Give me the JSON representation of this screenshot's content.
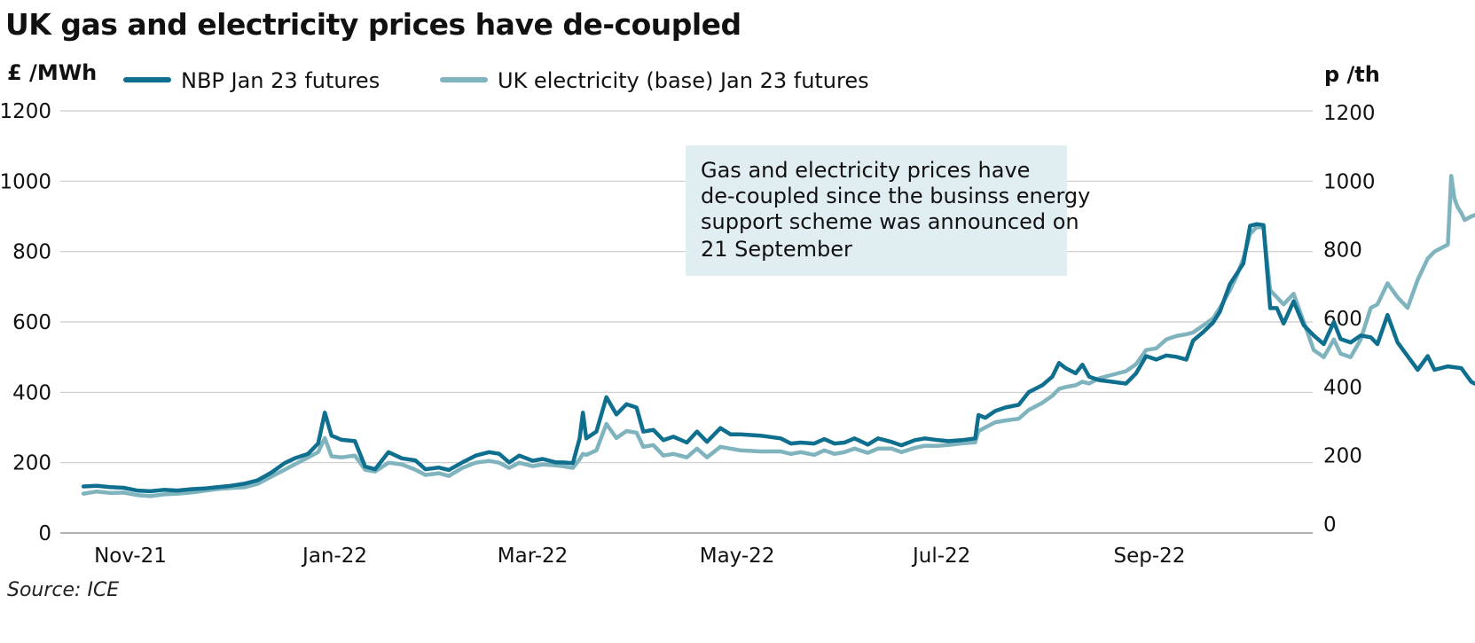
{
  "chart_data": {
    "type": "line",
    "title": "UK gas and electricity prices have de-coupled",
    "left_axis": {
      "unit": "£ /MWh",
      "ylim": [
        0,
        1200
      ],
      "ticks": [
        0,
        200,
        400,
        600,
        800,
        1000,
        1200
      ]
    },
    "right_axis": {
      "unit": "p /th",
      "ylim": [
        0,
        1200
      ],
      "ticks": [
        0,
        200,
        400,
        600,
        800,
        1000,
        1200
      ]
    },
    "x_ticks": [
      "Nov-21",
      "Jan-22",
      "Mar-22",
      "May-22",
      "Jul-22",
      "Sep-22"
    ],
    "x_tick_dates": [
      "2021-11-01",
      "2022-01-01",
      "2022-03-01",
      "2022-05-01",
      "2022-07-01",
      "2022-09-01"
    ],
    "grid": true,
    "legend_position": "top",
    "annotation": {
      "lines": [
        "Gas and electricity prices have",
        "de-coupled since the businss energy",
        "support scheme was announced on",
        "21 September"
      ]
    },
    "source": "Source: ICE",
    "series": [
      {
        "name": "NBP Jan 23 futures",
        "color": "#0f6f8f",
        "axis": "right",
        "points": [
          [
            "2021-10-18",
            110
          ],
          [
            "2021-10-22",
            112
          ],
          [
            "2021-10-26",
            108
          ],
          [
            "2021-10-30",
            106
          ],
          [
            "2021-11-03",
            98
          ],
          [
            "2021-11-07",
            96
          ],
          [
            "2021-11-11",
            100
          ],
          [
            "2021-11-15",
            98
          ],
          [
            "2021-11-19",
            102
          ],
          [
            "2021-11-23",
            104
          ],
          [
            "2021-11-27",
            108
          ],
          [
            "2021-12-01",
            112
          ],
          [
            "2021-12-05",
            118
          ],
          [
            "2021-12-09",
            128
          ],
          [
            "2021-12-13",
            150
          ],
          [
            "2021-12-17",
            178
          ],
          [
            "2021-12-20",
            192
          ],
          [
            "2021-12-24",
            205
          ],
          [
            "2021-12-27",
            235
          ],
          [
            "2021-12-29",
            325
          ],
          [
            "2021-12-31",
            258
          ],
          [
            "2022-01-03",
            246
          ],
          [
            "2022-01-07",
            242
          ],
          [
            "2022-01-10",
            168
          ],
          [
            "2022-01-13",
            160
          ],
          [
            "2022-01-17",
            210
          ],
          [
            "2022-01-21",
            192
          ],
          [
            "2022-01-25",
            186
          ],
          [
            "2022-01-28",
            160
          ],
          [
            "2022-02-01",
            165
          ],
          [
            "2022-02-04",
            158
          ],
          [
            "2022-02-08",
            180
          ],
          [
            "2022-02-12",
            200
          ],
          [
            "2022-02-16",
            210
          ],
          [
            "2022-02-19",
            205
          ],
          [
            "2022-02-22",
            180
          ],
          [
            "2022-02-25",
            200
          ],
          [
            "2022-03-01",
            185
          ],
          [
            "2022-03-04",
            190
          ],
          [
            "2022-03-08",
            180
          ],
          [
            "2022-03-10",
            180
          ],
          [
            "2022-03-13",
            178
          ],
          [
            "2022-03-15",
            250
          ],
          [
            "2022-03-16",
            325
          ],
          [
            "2022-03-17",
            250
          ],
          [
            "2022-03-20",
            270
          ],
          [
            "2022-03-23",
            370
          ],
          [
            "2022-03-26",
            320
          ],
          [
            "2022-03-29",
            350
          ],
          [
            "2022-04-01",
            340
          ],
          [
            "2022-04-03",
            270
          ],
          [
            "2022-04-06",
            275
          ],
          [
            "2022-04-09",
            245
          ],
          [
            "2022-04-12",
            255
          ],
          [
            "2022-04-16",
            238
          ],
          [
            "2022-04-19",
            270
          ],
          [
            "2022-04-22",
            240
          ],
          [
            "2022-04-26",
            280
          ],
          [
            "2022-04-29",
            262
          ],
          [
            "2022-05-02",
            262
          ],
          [
            "2022-05-08",
            258
          ],
          [
            "2022-05-14",
            250
          ],
          [
            "2022-05-17",
            235
          ],
          [
            "2022-05-20",
            238
          ],
          [
            "2022-05-24",
            235
          ],
          [
            "2022-05-27",
            248
          ],
          [
            "2022-05-30",
            235
          ],
          [
            "2022-06-02",
            238
          ],
          [
            "2022-06-05",
            250
          ],
          [
            "2022-06-09",
            232
          ],
          [
            "2022-06-12",
            250
          ],
          [
            "2022-06-16",
            240
          ],
          [
            "2022-06-19",
            230
          ],
          [
            "2022-06-23",
            245
          ],
          [
            "2022-06-26",
            250
          ],
          [
            "2022-06-30",
            245
          ],
          [
            "2022-07-03",
            242
          ],
          [
            "2022-07-07",
            245
          ],
          [
            "2022-07-11",
            250
          ],
          [
            "2022-07-12",
            318
          ],
          [
            "2022-07-14",
            310
          ],
          [
            "2022-07-17",
            330
          ],
          [
            "2022-07-20",
            340
          ],
          [
            "2022-07-24",
            348
          ],
          [
            "2022-07-27",
            385
          ],
          [
            "2022-07-31",
            405
          ],
          [
            "2022-08-03",
            430
          ],
          [
            "2022-08-05",
            470
          ],
          [
            "2022-08-07",
            455
          ],
          [
            "2022-08-10",
            440
          ],
          [
            "2022-08-12",
            465
          ],
          [
            "2022-08-14",
            430
          ],
          [
            "2022-08-17",
            420
          ],
          [
            "2022-08-21",
            415
          ],
          [
            "2022-08-25",
            410
          ],
          [
            "2022-08-28",
            440
          ],
          [
            "2022-08-31",
            490
          ],
          [
            "2022-09-03",
            480
          ],
          [
            "2022-09-06",
            492
          ],
          [
            "2022-09-09",
            488
          ],
          [
            "2022-09-12",
            480
          ],
          [
            "2022-09-14",
            535
          ],
          [
            "2022-09-17",
            560
          ],
          [
            "2022-09-20",
            588
          ],
          [
            "2022-09-22",
            620
          ],
          [
            "2022-09-25",
            700
          ],
          [
            "2022-09-27",
            730
          ],
          [
            "2022-09-29",
            760
          ],
          [
            "2022-10-01",
            870
          ],
          [
            "2022-10-03",
            875
          ],
          [
            "2022-10-05",
            872
          ],
          [
            "2022-10-07",
            630
          ],
          [
            "2022-10-09",
            630
          ],
          [
            "2022-10-11",
            585
          ],
          [
            "2022-10-14",
            650
          ],
          [
            "2022-10-17",
            580
          ],
          [
            "2022-10-20",
            550
          ],
          [
            "2022-10-23",
            525
          ],
          [
            "2022-10-26",
            590
          ],
          [
            "2022-10-28",
            540
          ],
          [
            "2022-10-31",
            530
          ],
          [
            "2022-11-03",
            550
          ],
          [
            "2022-11-06",
            545
          ],
          [
            "2022-11-08",
            525
          ],
          [
            "2022-11-11",
            610
          ],
          [
            "2022-11-14",
            530
          ],
          [
            "2022-11-17",
            490
          ],
          [
            "2022-11-20",
            450
          ],
          [
            "2022-11-23",
            490
          ],
          [
            "2022-11-25",
            450
          ],
          [
            "2022-11-29",
            460
          ],
          [
            "2022-12-03",
            455
          ],
          [
            "2022-12-06",
            415
          ],
          [
            "2022-12-09",
            400
          ]
        ]
      },
      {
        "name": "UK electricity (base) Jan 23 futures",
        "color": "#7fb4bf",
        "axis": "left",
        "points": [
          [
            "2021-10-18",
            112
          ],
          [
            "2021-10-22",
            118
          ],
          [
            "2021-10-26",
            114
          ],
          [
            "2021-10-30",
            115
          ],
          [
            "2021-11-03",
            108
          ],
          [
            "2021-11-07",
            105
          ],
          [
            "2021-11-11",
            110
          ],
          [
            "2021-11-15",
            112
          ],
          [
            "2021-11-19",
            115
          ],
          [
            "2021-11-23",
            120
          ],
          [
            "2021-11-27",
            125
          ],
          [
            "2021-12-01",
            128
          ],
          [
            "2021-12-05",
            130
          ],
          [
            "2021-12-09",
            140
          ],
          [
            "2021-12-13",
            160
          ],
          [
            "2021-12-17",
            180
          ],
          [
            "2021-12-20",
            195
          ],
          [
            "2021-12-24",
            215
          ],
          [
            "2021-12-27",
            230
          ],
          [
            "2021-12-29",
            270
          ],
          [
            "2021-12-31",
            218
          ],
          [
            "2022-01-03",
            215
          ],
          [
            "2022-01-07",
            220
          ],
          [
            "2022-01-10",
            180
          ],
          [
            "2022-01-13",
            175
          ],
          [
            "2022-01-17",
            200
          ],
          [
            "2022-01-21",
            195
          ],
          [
            "2022-01-25",
            180
          ],
          [
            "2022-01-28",
            165
          ],
          [
            "2022-02-01",
            170
          ],
          [
            "2022-02-04",
            162
          ],
          [
            "2022-02-08",
            185
          ],
          [
            "2022-02-12",
            200
          ],
          [
            "2022-02-16",
            205
          ],
          [
            "2022-02-19",
            200
          ],
          [
            "2022-02-22",
            185
          ],
          [
            "2022-02-25",
            200
          ],
          [
            "2022-03-01",
            190
          ],
          [
            "2022-03-04",
            195
          ],
          [
            "2022-03-08",
            192
          ],
          [
            "2022-03-10",
            190
          ],
          [
            "2022-03-13",
            185
          ],
          [
            "2022-03-15",
            210
          ],
          [
            "2022-03-16",
            225
          ],
          [
            "2022-03-17",
            222
          ],
          [
            "2022-03-20",
            235
          ],
          [
            "2022-03-23",
            310
          ],
          [
            "2022-03-26",
            270
          ],
          [
            "2022-03-29",
            290
          ],
          [
            "2022-04-01",
            285
          ],
          [
            "2022-04-03",
            245
          ],
          [
            "2022-04-06",
            250
          ],
          [
            "2022-04-09",
            220
          ],
          [
            "2022-04-12",
            225
          ],
          [
            "2022-04-16",
            215
          ],
          [
            "2022-04-19",
            240
          ],
          [
            "2022-04-22",
            215
          ],
          [
            "2022-04-26",
            245
          ],
          [
            "2022-04-29",
            240
          ],
          [
            "2022-05-02",
            235
          ],
          [
            "2022-05-08",
            232
          ],
          [
            "2022-05-14",
            232
          ],
          [
            "2022-05-17",
            225
          ],
          [
            "2022-05-20",
            230
          ],
          [
            "2022-05-24",
            222
          ],
          [
            "2022-05-27",
            235
          ],
          [
            "2022-05-30",
            225
          ],
          [
            "2022-06-02",
            230
          ],
          [
            "2022-06-05",
            240
          ],
          [
            "2022-06-09",
            228
          ],
          [
            "2022-06-12",
            240
          ],
          [
            "2022-06-16",
            240
          ],
          [
            "2022-06-19",
            230
          ],
          [
            "2022-06-23",
            242
          ],
          [
            "2022-06-26",
            248
          ],
          [
            "2022-06-30",
            248
          ],
          [
            "2022-07-03",
            250
          ],
          [
            "2022-07-07",
            255
          ],
          [
            "2022-07-11",
            258
          ],
          [
            "2022-07-12",
            290
          ],
          [
            "2022-07-14",
            300
          ],
          [
            "2022-07-17",
            315
          ],
          [
            "2022-07-20",
            320
          ],
          [
            "2022-07-24",
            325
          ],
          [
            "2022-07-27",
            350
          ],
          [
            "2022-07-31",
            370
          ],
          [
            "2022-08-03",
            390
          ],
          [
            "2022-08-05",
            410
          ],
          [
            "2022-08-07",
            415
          ],
          [
            "2022-08-10",
            420
          ],
          [
            "2022-08-12",
            430
          ],
          [
            "2022-08-14",
            425
          ],
          [
            "2022-08-17",
            440
          ],
          [
            "2022-08-21",
            450
          ],
          [
            "2022-08-25",
            460
          ],
          [
            "2022-08-28",
            480
          ],
          [
            "2022-08-31",
            520
          ],
          [
            "2022-09-03",
            525
          ],
          [
            "2022-09-06",
            550
          ],
          [
            "2022-09-09",
            560
          ],
          [
            "2022-09-12",
            565
          ],
          [
            "2022-09-14",
            570
          ],
          [
            "2022-09-17",
            590
          ],
          [
            "2022-09-20",
            610
          ],
          [
            "2022-09-22",
            640
          ],
          [
            "2022-09-25",
            690
          ],
          [
            "2022-09-27",
            730
          ],
          [
            "2022-09-29",
            780
          ],
          [
            "2022-10-01",
            850
          ],
          [
            "2022-10-03",
            870
          ],
          [
            "2022-10-05",
            868
          ],
          [
            "2022-10-07",
            690
          ],
          [
            "2022-10-09",
            670
          ],
          [
            "2022-10-11",
            650
          ],
          [
            "2022-10-14",
            680
          ],
          [
            "2022-10-17",
            600
          ],
          [
            "2022-10-20",
            520
          ],
          [
            "2022-10-23",
            500
          ],
          [
            "2022-10-26",
            550
          ],
          [
            "2022-10-28",
            510
          ],
          [
            "2022-10-31",
            500
          ],
          [
            "2022-11-03",
            550
          ],
          [
            "2022-11-06",
            640
          ],
          [
            "2022-11-08",
            650
          ],
          [
            "2022-11-11",
            710
          ],
          [
            "2022-11-14",
            670
          ],
          [
            "2022-11-17",
            640
          ],
          [
            "2022-11-20",
            720
          ],
          [
            "2022-11-23",
            780
          ],
          [
            "2022-11-25",
            800
          ],
          [
            "2022-11-29",
            820
          ],
          [
            "2022-11-30",
            1015
          ],
          [
            "2022-12-01",
            950
          ],
          [
            "2022-12-02",
            925
          ],
          [
            "2022-12-03",
            910
          ],
          [
            "2022-12-04",
            890
          ],
          [
            "2022-12-06",
            900
          ],
          [
            "2022-12-09",
            910
          ]
        ]
      }
    ]
  }
}
